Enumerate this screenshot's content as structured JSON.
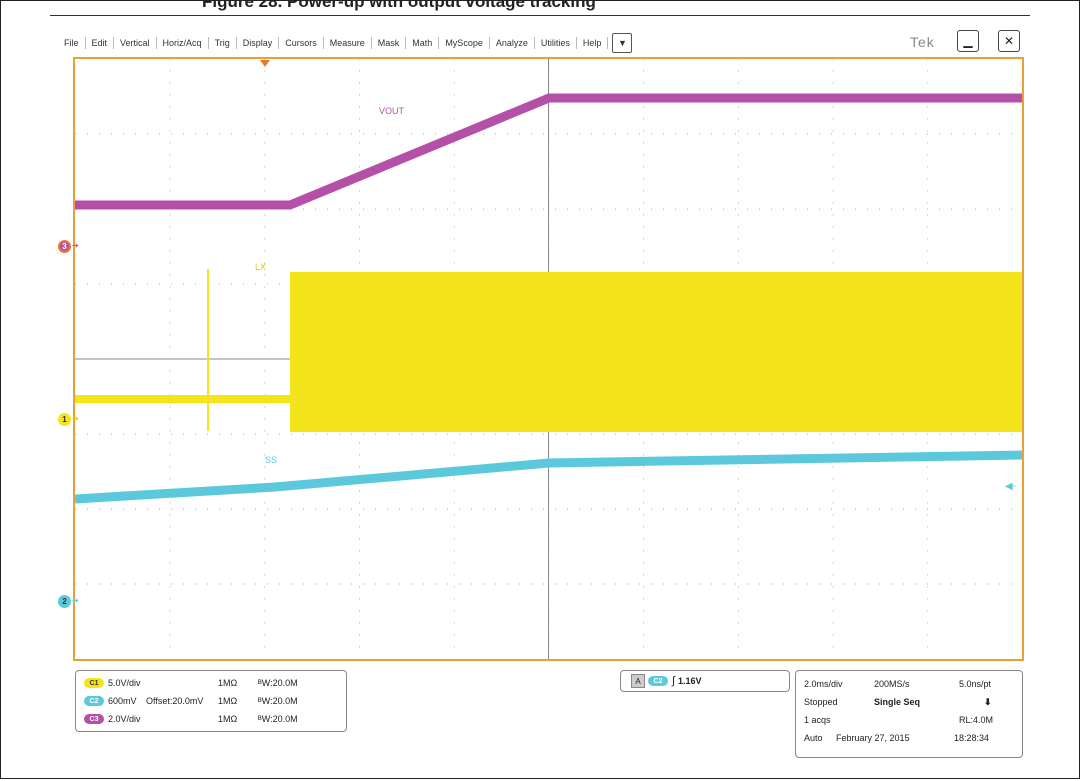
{
  "header": {
    "title": "Figure 28. Power-up with output voltage tracking"
  },
  "menu": {
    "items": [
      "File",
      "Edit",
      "Vertical",
      "Horiz/Acq",
      "Trig",
      "Display",
      "Cursors",
      "Measure",
      "Mask",
      "Math",
      "MyScope",
      "Analyze",
      "Utilities",
      "Help"
    ],
    "dropdown_icon": "chevron-down-icon"
  },
  "brand": "Tek",
  "window": {
    "minimize_icon": "minimize-icon",
    "close_icon": "close-icon"
  },
  "colors": {
    "ch1": "#f4e41c",
    "ch2": "#5cc8dc",
    "ch3": "#b450a8",
    "frame": "#e8a13a"
  },
  "waveforms": {
    "vout_label": "VOUT",
    "lx_label": "LX",
    "ss_label": "SS"
  },
  "markers": {
    "ch3": "3",
    "ch1": "1",
    "ch2": "2"
  },
  "channels": [
    {
      "chip": "C1",
      "scale": "5.0V/div",
      "offset": "",
      "impedance": "1MΩ",
      "bw": "ᴮW:20.0M"
    },
    {
      "chip": "C2",
      "scale": "600mV",
      "offset": "Offset:20.0mV",
      "impedance": "1MΩ",
      "bw": "ᴮW:20.0M"
    },
    {
      "chip": "C3",
      "scale": "2.0V/div",
      "offset": "",
      "impedance": "1MΩ",
      "bw": "ᴮW:20.0M"
    }
  ],
  "trigger": {
    "mode": "A",
    "source": "C2",
    "level": "1.16V"
  },
  "acquisition": {
    "timebase": "2.0ms/div",
    "sample_rate": "200MS/s",
    "resolution": "5.0ns/pt",
    "state": "Stopped",
    "sequence": "Single Seq",
    "acqs": "1 acqs",
    "record_length": "RL:4.0M",
    "mode": "Auto",
    "date": "February 27, 2015",
    "time": "18:28:34"
  }
}
